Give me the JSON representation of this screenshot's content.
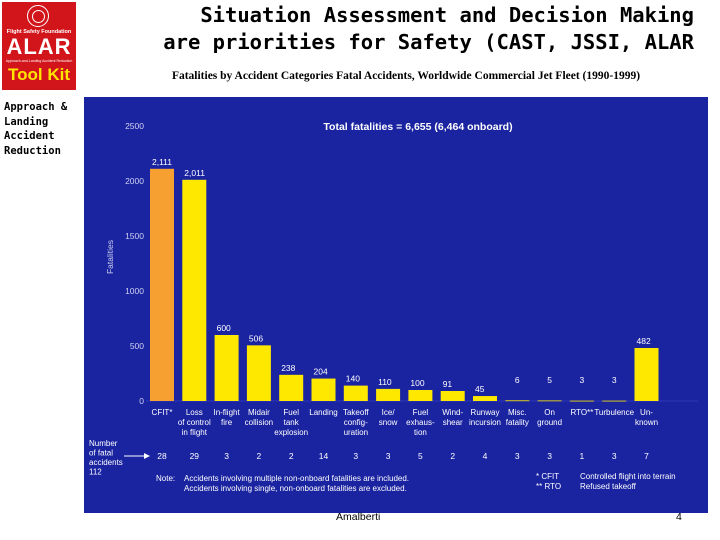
{
  "header": {
    "logo": {
      "org": "Flight Safety Foundation",
      "alar": "ALAR",
      "sub": "Approach-and-Landing Accident Reduction",
      "kit": "Tool Kit"
    },
    "title_line1": "Situation Assessment and Decision Making",
    "title_line2": "are priorities for Safety (CAST, JSSI, ALAR",
    "subtitle": "Fatalities by Accident Categories Fatal Accidents, Worldwide Commercial Jet Fleet (1990-1999)",
    "side_label": [
      "Approach &",
      "Landing",
      "Accident",
      "Reduction"
    ]
  },
  "colors": {
    "chart_bg": "#1a23a0",
    "bar_cfit": "#f5a030",
    "bar_other": "#ffe800",
    "text": "#ffffff",
    "axis_text": "#cfd2f0"
  },
  "chart_data": {
    "type": "bar",
    "title": "Total fatalities = 6,655 (6,464 onboard)",
    "ylabel": "Fatalities",
    "ylim": [
      0,
      2500
    ],
    "yticks": [
      0,
      500,
      1000,
      1500,
      2000,
      2500
    ],
    "categories": [
      [
        "CFIT*"
      ],
      [
        "Loss",
        "of control",
        "in flight"
      ],
      [
        "In-flight",
        "fire"
      ],
      [
        "Midair",
        "collision"
      ],
      [
        "Fuel",
        "tank",
        "explosion"
      ],
      [
        "Landing"
      ],
      [
        "Takeoff",
        "config-",
        "uration"
      ],
      [
        "Ice/",
        "snow"
      ],
      [
        "Fuel",
        "exhaus-",
        "tion"
      ],
      [
        "Wind-",
        "shear"
      ],
      [
        "Runway",
        "incursion"
      ],
      [
        "Misc.",
        "fatality"
      ],
      [
        "On",
        "ground"
      ],
      [
        "RTO**"
      ],
      [
        "Turbulence"
      ],
      [
        "Un-",
        "known"
      ]
    ],
    "values": [
      2111,
      2011,
      600,
      506,
      238,
      204,
      140,
      110,
      100,
      91,
      45,
      6,
      5,
      3,
      3,
      482
    ],
    "value_labels": [
      "2,111",
      "2,011",
      "600",
      "506",
      "238",
      "204",
      "140",
      "110",
      "100",
      "91",
      "45",
      "6",
      "5",
      "3",
      "3",
      "482"
    ],
    "accident_counts": [
      "28",
      "29",
      "3",
      "2",
      "2",
      "14",
      "3",
      "3",
      "5",
      "2",
      "4",
      "3",
      "3",
      "1",
      "3",
      "7"
    ],
    "counts_label": [
      "Number",
      "of fatal",
      "accidents",
      "112"
    ],
    "note_label": "Note:",
    "notes": [
      "Accidents involving multiple non-onboard fatalities are included.",
      "Accidents involving single, non-onboard fatalities are excluded."
    ],
    "legend": [
      {
        "key": "* CFIT",
        "value": "Controlled flight into terrain"
      },
      {
        "key": "** RTO",
        "value": "Refused takeoff"
      }
    ]
  },
  "footer": {
    "author": "Amalberti",
    "page": "4"
  }
}
